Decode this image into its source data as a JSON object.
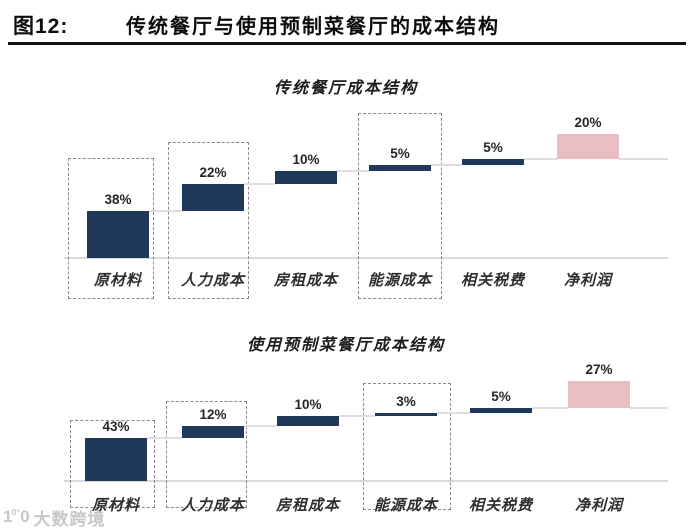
{
  "header": {
    "figure_label": "图12:",
    "title": "传统餐厅与使用预制菜餐厅的成本结构"
  },
  "watermark": {
    "logo_glyph": "10°°",
    "text": "大数跨境"
  },
  "colors": {
    "cost_bar_navy": "#20395a",
    "profit_bar_pink": "#e9bdc1",
    "connector_gray": "#dedede",
    "dashed_box_gray": "#8a8a8a",
    "header_rule_black": "#141414"
  },
  "chart_data": [
    {
      "type": "bar",
      "subtype": "waterfall",
      "title": "传统餐厅成本结构",
      "categories": [
        "原材料",
        "人力成本",
        "房租成本",
        "能源成本",
        "相关税费",
        "净利润"
      ],
      "values": [
        38,
        22,
        10,
        5,
        5,
        20
      ],
      "data_labels": [
        "38%",
        "22%",
        "10%",
        "5%",
        "5%",
        "20%"
      ],
      "unit": "%",
      "ylim": [
        0,
        100
      ],
      "highlight_index": 5,
      "boxed_category_indexes": [
        0,
        1,
        3
      ],
      "grid": "off",
      "legend": "none"
    },
    {
      "type": "bar",
      "subtype": "waterfall",
      "title": "使用预制菜餐厅成本结构",
      "categories": [
        "原材料",
        "人力成本",
        "房租成本",
        "能源成本",
        "相关税费",
        "净利润"
      ],
      "values": [
        43,
        12,
        10,
        3,
        5,
        27
      ],
      "data_labels": [
        "43%",
        "12%",
        "10%",
        "3%",
        "5%",
        "27%"
      ],
      "unit": "%",
      "ylim": [
        0,
        100
      ],
      "highlight_index": 5,
      "boxed_category_indexes": [
        0,
        1,
        3
      ],
      "grid": "off",
      "legend": "none"
    }
  ]
}
